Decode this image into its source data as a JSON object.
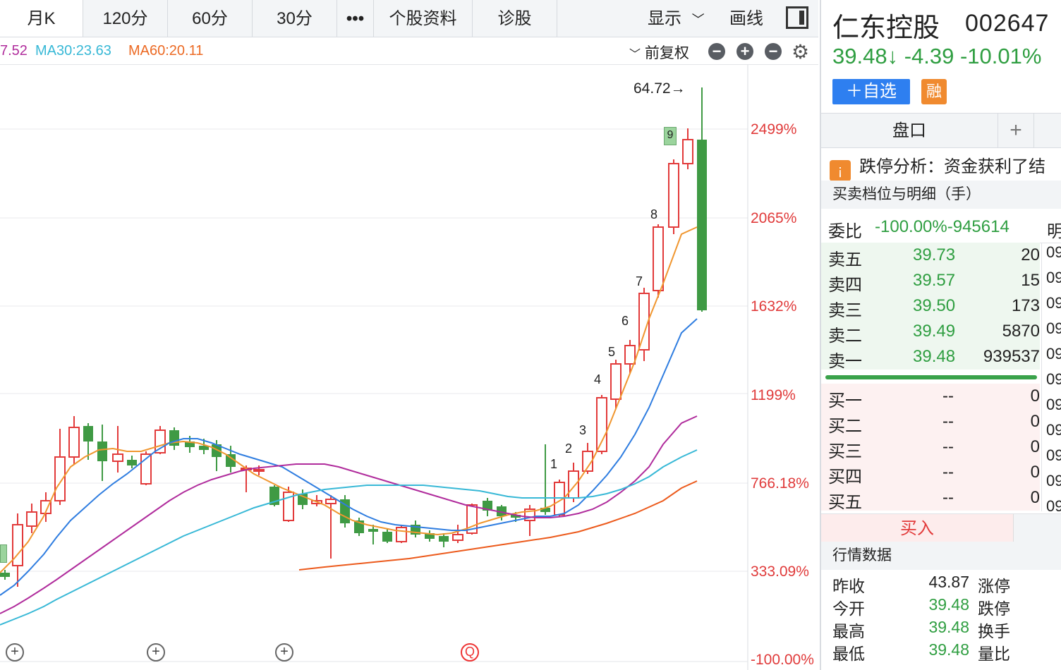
{
  "toolbar": {
    "tabs": [
      "月K",
      "120分",
      "60分",
      "30分",
      "•••",
      "个股资料",
      "诊股"
    ],
    "display_label": "显示",
    "draw_label": "画线"
  },
  "ma_row": {
    "ma_cut": "7.52",
    "ma30": "MA30:23.63",
    "ma60": "MA60:20.11",
    "adjust": "前复权"
  },
  "chart": {
    "y_labels": [
      "2499%",
      "2065%",
      "1632%",
      "1199%",
      "766.18%",
      "333.09%",
      "-100.00%"
    ],
    "peak_label": "64.72→",
    "nine_marker": "9",
    "countdown": [
      "2",
      "3",
      "4",
      "5",
      "6",
      "7",
      "8"
    ],
    "one": "1",
    "event_q": "Q",
    "event_plus": "+"
  },
  "chart_data": {
    "type": "candlestick",
    "y_axis_labels": [
      "2499%",
      "2065%",
      "1632%",
      "1199%",
      "766.18%",
      "333.09%",
      "-100.00%"
    ],
    "peak_price": 64.72,
    "series": [
      {
        "name": "MA30",
        "value": 23.63
      },
      {
        "name": "MA60",
        "value": 20.11
      }
    ]
  },
  "stock": {
    "name": "仁东控股",
    "code": "002647",
    "price_line": "39.48↓ -4.39 -10.01%",
    "add_watch": "＋自选",
    "rong": "融"
  },
  "panel": {
    "pankou": "盘口",
    "plus": "+",
    "limit_text": "跌停分析：资金获利了结",
    "limit_icon": "¡",
    "orderbook_title": "买卖档位与明细（手）",
    "weibi_label": "委比",
    "weibi_value": "-100.00%-945614",
    "weibi_cut": "明",
    "buy_button": "买入",
    "quote_title": "行情数据"
  },
  "sells": [
    {
      "label": "卖五",
      "price": "39.73",
      "vol": "20"
    },
    {
      "label": "卖四",
      "price": "39.57",
      "vol": "15"
    },
    {
      "label": "卖三",
      "price": "39.50",
      "vol": "173"
    },
    {
      "label": "卖二",
      "price": "39.49",
      "vol": "5870"
    },
    {
      "label": "卖一",
      "price": "39.48",
      "vol": "939537"
    }
  ],
  "buys": [
    {
      "label": "买一",
      "price": "--",
      "vol": "0"
    },
    {
      "label": "买二",
      "price": "--",
      "vol": "0"
    },
    {
      "label": "买三",
      "price": "--",
      "vol": "0"
    },
    {
      "label": "买四",
      "price": "--",
      "vol": "0"
    },
    {
      "label": "买五",
      "price": "--",
      "vol": "0"
    }
  ],
  "time_cut": [
    "09",
    "09",
    "09",
    "09",
    "09",
    "09",
    "09",
    "09",
    "09",
    "09",
    "09"
  ],
  "quotes": [
    {
      "k": "昨收",
      "v": "43.87",
      "k2": "涨停",
      "color": "#222222"
    },
    {
      "k": "今开",
      "v": "39.48",
      "k2": "跌停",
      "color": "#2f9e41"
    },
    {
      "k": "最高",
      "v": "39.48",
      "k2": "换手",
      "color": "#2f9e41"
    },
    {
      "k": "最低",
      "v": "39.48",
      "k2": "量比",
      "color": "#2f9e41"
    }
  ]
}
